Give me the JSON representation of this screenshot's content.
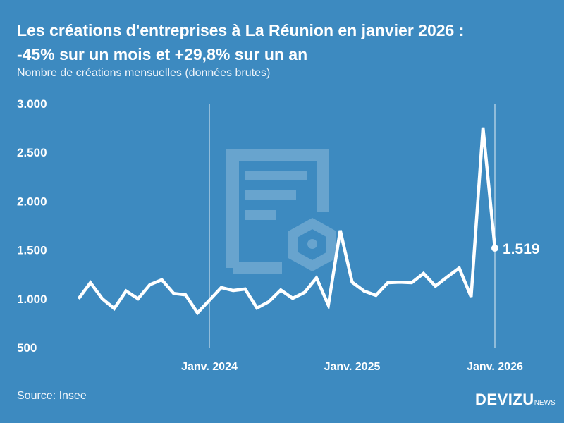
{
  "title_line1": "Les créations d'entreprises à La Réunion en janvier 2026 :",
  "title_line2": "-45% sur un mois et +29,8% sur un an",
  "subtitle": "Nombre de créations mensuelles (données brutes)",
  "source": "Source: Insee",
  "logo": {
    "main": "DEVIZU",
    "suffix": "NEWS"
  },
  "colors": {
    "background": "#3d8ac0",
    "line": "#ffffff"
  },
  "chart_data": {
    "type": "line",
    "title": "Les créations d'entreprises à La Réunion en janvier 2026 : -45% sur un mois et +29,8% sur un an",
    "subtitle": "Nombre de créations mensuelles (données brutes)",
    "xlabel": "",
    "ylabel": "",
    "ylim": [
      500,
      3000
    ],
    "yticks": [
      500,
      1000,
      1500,
      2000,
      2500,
      3000
    ],
    "ytick_labels": [
      "500",
      "1.000",
      "1.500",
      "2.000",
      "2.500",
      "3.000"
    ],
    "xticks": [
      {
        "month": "2024-01",
        "label": "Janv. 2024"
      },
      {
        "month": "2025-01",
        "label": "Janv. 2025"
      },
      {
        "month": "2026-01",
        "label": "Janv. 2026"
      }
    ],
    "grid": "vertical lines at x ticks",
    "x": [
      "2023-02",
      "2023-03",
      "2023-04",
      "2023-05",
      "2023-06",
      "2023-07",
      "2023-08",
      "2023-09",
      "2023-10",
      "2023-11",
      "2023-12",
      "2024-01",
      "2024-02",
      "2024-03",
      "2024-04",
      "2024-05",
      "2024-06",
      "2024-07",
      "2024-08",
      "2024-09",
      "2024-10",
      "2024-11",
      "2024-12",
      "2025-01",
      "2025-02",
      "2025-03",
      "2025-04",
      "2025-05",
      "2025-06",
      "2025-07",
      "2025-08",
      "2025-09",
      "2025-10",
      "2025-11",
      "2025-12",
      "2026-01"
    ],
    "values": [
      1000,
      1165,
      1000,
      900,
      1080,
      1000,
      1145,
      1195,
      1055,
      1040,
      855,
      985,
      1115,
      1085,
      1100,
      905,
      970,
      1090,
      1005,
      1065,
      1215,
      935,
      1700,
      1170,
      1080,
      1035,
      1165,
      1170,
      1165,
      1260,
      1130,
      1225,
      1315,
      1020,
      2755,
      1519
    ],
    "annotation": {
      "month": "2026-01",
      "label": "1.519"
    }
  }
}
